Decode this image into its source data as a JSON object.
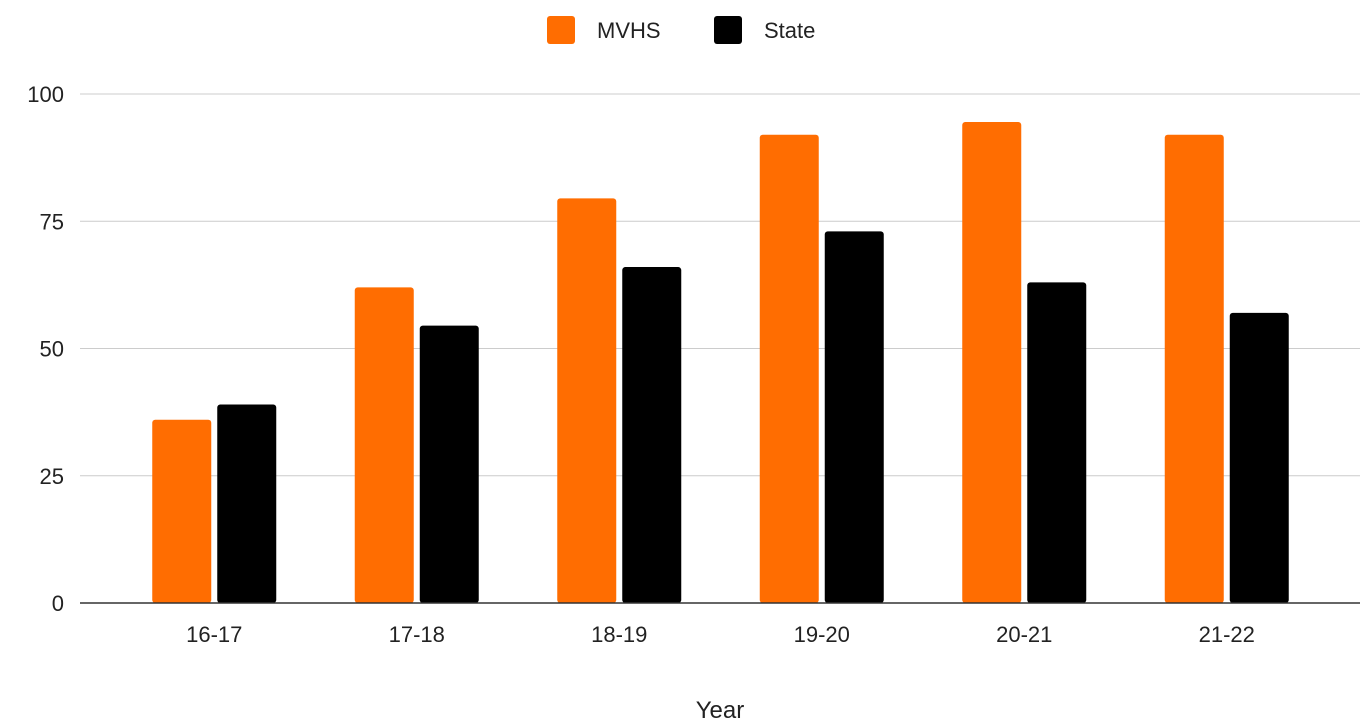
{
  "chart_data": {
    "type": "bar",
    "title": "",
    "xlabel": "Year",
    "ylabel": "",
    "ylim": [
      0,
      100
    ],
    "yticks": [
      0,
      25,
      50,
      75,
      100
    ],
    "grid": true,
    "legend_position": "top-center",
    "categories": [
      "16-17",
      "17-18",
      "18-19",
      "19-20",
      "20-21",
      "21-22"
    ],
    "series": [
      {
        "name": "MVHS",
        "color": "#ff6d01",
        "values": [
          36,
          62,
          79.5,
          92,
          94.5,
          92
        ]
      },
      {
        "name": "State",
        "color": "#000000",
        "values": [
          39,
          54.5,
          66,
          73,
          63,
          57
        ]
      }
    ]
  }
}
